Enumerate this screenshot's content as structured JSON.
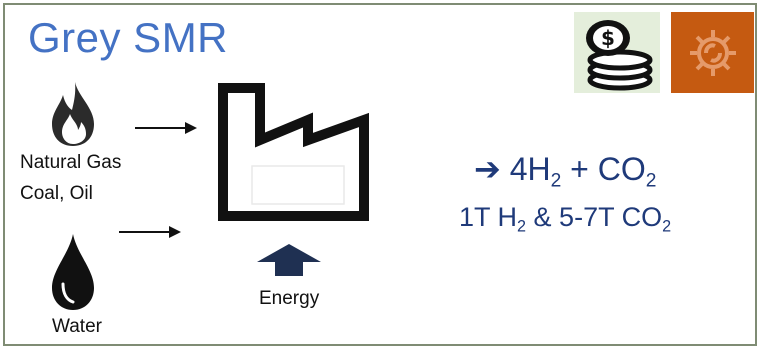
{
  "title": "Grey SMR",
  "inputs": {
    "fuel_label_line1": "Natural Gas",
    "fuel_label_line2": "Coal, Oil",
    "water_label": "Water",
    "energy_label": "Energy"
  },
  "output": {
    "arrow_symbol": "➔",
    "line1_part1": "4H",
    "line1_sub1": "2",
    "line1_part2": " + CO",
    "line1_sub2": "2",
    "line2_part1": "1T H",
    "line2_sub1": "2",
    "line2_part2": " & 5-7T CO",
    "line2_sub2": "2"
  },
  "icons": {
    "fuel": "flame-icon",
    "water": "water-drop-icon",
    "factory": "factory-icon",
    "energy": "up-arrow-icon",
    "cost": "coins-dollar-icon",
    "process": "gear-icon"
  },
  "colors": {
    "title": "#4472c4",
    "equation": "#1f3a7a",
    "coins_bg": "#e4eedb",
    "gear_bg": "#c55a11",
    "frame": "#7f8c74"
  }
}
